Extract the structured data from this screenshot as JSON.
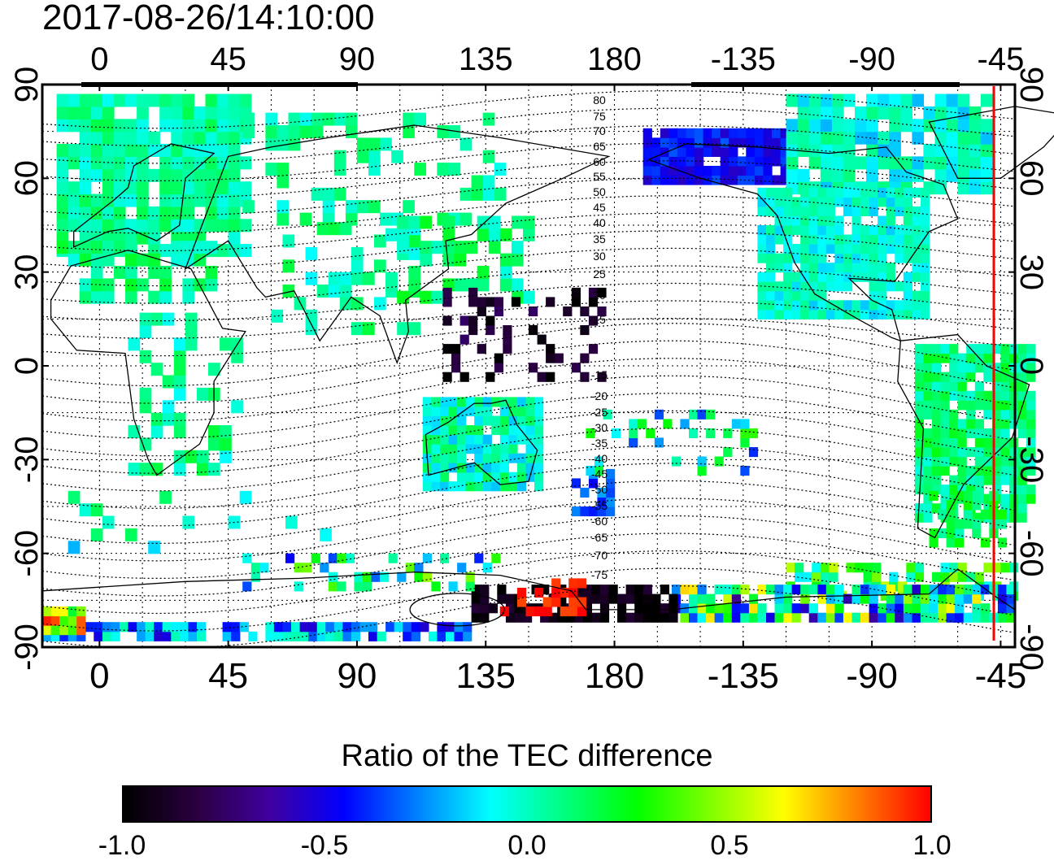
{
  "timestamp": "2017-08-26/14:10:00",
  "map": {
    "lon_ticks_top": [
      "0",
      "45",
      "90",
      "135",
      "180",
      "-135",
      "-90",
      "-45"
    ],
    "lon_ticks_bottom": [
      "0",
      "45",
      "90",
      "135",
      "180",
      "-135",
      "-90",
      "-45"
    ],
    "lat_ticks_left": [
      "90",
      "60",
      "30",
      "0",
      "-30",
      "-60",
      "-90"
    ],
    "lat_ticks_right": [
      "90",
      "60",
      "30",
      "0",
      "-30",
      "-60",
      "-90"
    ],
    "lon_range": [
      -20,
      320
    ],
    "lat_range": [
      -90,
      90
    ],
    "grid_dotted": true,
    "contour_labels": [
      "80",
      "75",
      "70",
      "65",
      "60",
      "55",
      "50",
      "45",
      "40",
      "35",
      "30",
      "25",
      "20",
      "15",
      "-15",
      "-20",
      "-25",
      "-30",
      "-35",
      "-40",
      "-45",
      "-50",
      "-55",
      "-60",
      "-65",
      "-70",
      "-75"
    ],
    "terminator_color": "#ff0000"
  },
  "colorbar": {
    "title": "Ratio of the TEC difference",
    "ticks": [
      "-1.0",
      "-0.5",
      "0.0",
      "0.5",
      "1.0"
    ],
    "range": [
      -1.0,
      1.0
    ],
    "colormap": [
      "#000000",
      "#2a0040",
      "#4000a0",
      "#0000ff",
      "#0080ff",
      "#00ffff",
      "#00ff80",
      "#00ff00",
      "#80ff00",
      "#ffff00",
      "#ff8000",
      "#ff0000"
    ]
  }
}
